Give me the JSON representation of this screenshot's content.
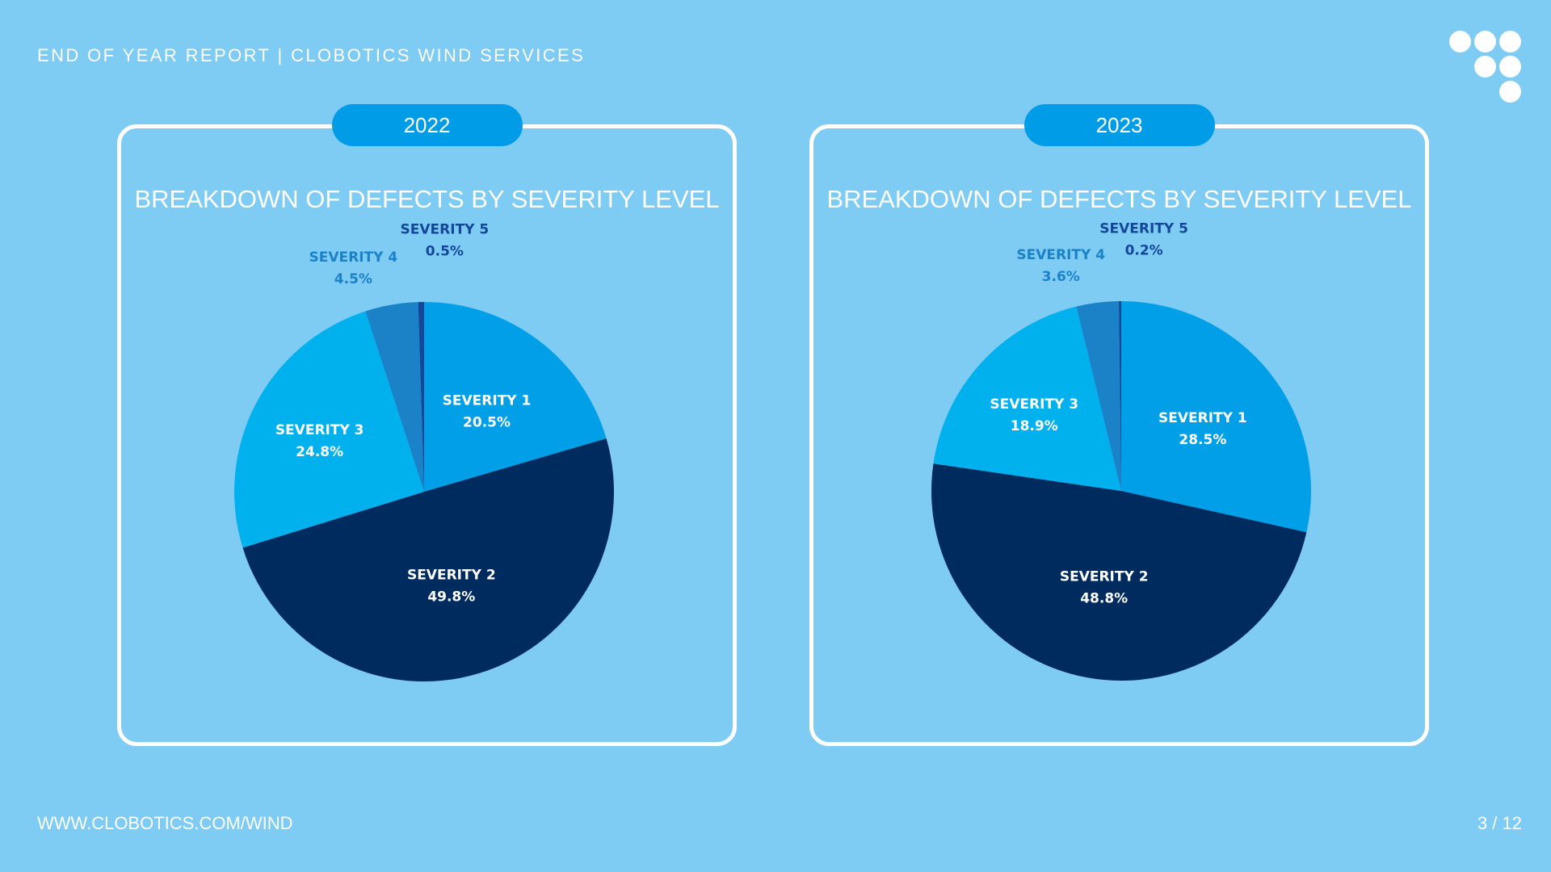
{
  "header": {
    "title": "END OF YEAR REPORT | CLOBOTICS WIND SERVICES"
  },
  "footer": {
    "url": "WWW.CLOBOTICS.COM/WIND",
    "page": "3 / 12"
  },
  "colors": {
    "background": "#7ecbf3",
    "severity_1": "#009fe8",
    "severity_2": "#002b5e",
    "severity_3": "#00b1ed",
    "severity_4": "#1b82c7",
    "severity_5": "#14479a",
    "label_dark": "#14479a",
    "label_mid": "#1b82c7",
    "pill": "#009ce8"
  },
  "chart_data": [
    {
      "type": "pie",
      "year": "2022",
      "title": "BREAKDOWN OF DEFECTS BY SEVERITY LEVEL",
      "slices": [
        {
          "name": "SEVERITY 1",
          "value": 20.5,
          "label": "20.5%"
        },
        {
          "name": "SEVERITY 2",
          "value": 49.8,
          "label": "49.8%"
        },
        {
          "name": "SEVERITY 3",
          "value": 24.8,
          "label": "24.8%"
        },
        {
          "name": "SEVERITY 4",
          "value": 4.5,
          "label": "4.5%"
        },
        {
          "name": "SEVERITY 5",
          "value": 0.5,
          "label": "0.5%"
        }
      ]
    },
    {
      "type": "pie",
      "year": "2023",
      "title": "BREAKDOWN OF DEFECTS BY SEVERITY LEVEL",
      "slices": [
        {
          "name": "SEVERITY 1",
          "value": 28.5,
          "label": "28.5%"
        },
        {
          "name": "SEVERITY 2",
          "value": 48.8,
          "label": "48.8%"
        },
        {
          "name": "SEVERITY 3",
          "value": 18.9,
          "label": "18.9%"
        },
        {
          "name": "SEVERITY 4",
          "value": 3.6,
          "label": "3.6%"
        },
        {
          "name": "SEVERITY 5",
          "value": 0.2,
          "label": "0.2%"
        }
      ]
    }
  ]
}
